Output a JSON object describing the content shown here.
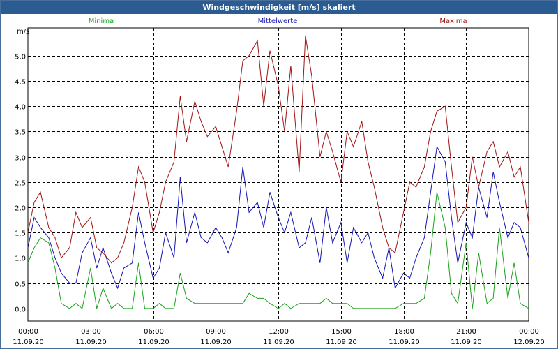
{
  "window": {
    "title": "Windgeschwindigkeit [m/s] skaliert"
  },
  "chart_data": {
    "type": "line",
    "title": "Windgeschwindigkeit [m/s] skaliert",
    "ylabel": "m/s",
    "ylim": [
      -0.25,
      5.55
    ],
    "yticks": [
      0.0,
      0.5,
      1.0,
      1.5,
      2.0,
      2.5,
      3.0,
      3.5,
      4.0,
      4.5,
      5.0
    ],
    "ytick_labels": [
      "0,0",
      "0,5",
      "1,0",
      "1,5",
      "2,0",
      "2,5",
      "3,0",
      "3,5",
      "4,0",
      "4,5",
      "5,0"
    ],
    "xlim": [
      0,
      24
    ],
    "xticks": [
      0,
      3,
      6,
      9,
      12,
      15,
      18,
      21,
      24
    ],
    "xtick_labels": [
      {
        "time": "00:00",
        "date": "11.09.20"
      },
      {
        "time": "03:00",
        "date": "11.09.20"
      },
      {
        "time": "06:00",
        "date": "11.09.20"
      },
      {
        "time": "09:00",
        "date": "11.09.20"
      },
      {
        "time": "12:00",
        "date": "11.09.20"
      },
      {
        "time": "15:00",
        "date": "11.09.20"
      },
      {
        "time": "18:00",
        "date": "11.09.20"
      },
      {
        "time": "21:00",
        "date": "11.09.20"
      },
      {
        "time": "00:00",
        "date": "12.09.20"
      }
    ],
    "grid": true,
    "legend_position": "top",
    "series": [
      {
        "name": "Minima",
        "color": "#1aa11a",
        "x": [
          0.0,
          0.3,
          0.6,
          1.0,
          1.3,
          1.6,
          2.0,
          2.3,
          2.6,
          3.0,
          3.3,
          3.6,
          4.0,
          4.3,
          4.6,
          5.0,
          5.3,
          5.6,
          6.0,
          6.3,
          6.6,
          7.0,
          7.3,
          7.6,
          8.0,
          8.3,
          8.6,
          9.0,
          9.3,
          9.6,
          10.0,
          10.3,
          10.6,
          11.0,
          11.3,
          11.6,
          12.0,
          12.3,
          12.6,
          13.0,
          13.3,
          13.6,
          14.0,
          14.3,
          14.6,
          15.0,
          15.3,
          15.6,
          16.0,
          16.3,
          16.6,
          17.0,
          17.3,
          17.6,
          18.0,
          18.3,
          18.6,
          19.0,
          19.3,
          19.6,
          20.0,
          20.3,
          20.6,
          21.0,
          21.3,
          21.6,
          22.0,
          22.3,
          22.6,
          23.0,
          23.3,
          23.6,
          24.0
        ],
        "y": [
          0.9,
          1.2,
          1.4,
          1.3,
          0.8,
          0.1,
          0.0,
          0.1,
          0.0,
          0.8,
          0.0,
          0.4,
          0.0,
          0.1,
          0.0,
          0.0,
          0.9,
          0.0,
          0.0,
          0.1,
          0.0,
          0.0,
          0.7,
          0.2,
          0.1,
          0.1,
          0.1,
          0.1,
          0.1,
          0.1,
          0.1,
          0.1,
          0.3,
          0.2,
          0.2,
          0.1,
          0.0,
          0.1,
          0.0,
          0.1,
          0.1,
          0.1,
          0.1,
          0.2,
          0.1,
          0.1,
          0.1,
          0.0,
          0.0,
          0.0,
          0.0,
          0.0,
          0.0,
          0.0,
          0.1,
          0.1,
          0.1,
          0.2,
          1.1,
          2.3,
          1.6,
          0.3,
          0.1,
          1.3,
          0.0,
          1.1,
          0.1,
          0.2,
          1.6,
          0.2,
          0.9,
          0.1,
          0.0
        ]
      },
      {
        "name": "Mittelwerte",
        "color": "#1414b4",
        "x": [
          0.0,
          0.3,
          0.6,
          1.0,
          1.3,
          1.6,
          2.0,
          2.3,
          2.6,
          3.0,
          3.3,
          3.6,
          4.0,
          4.3,
          4.6,
          5.0,
          5.3,
          5.6,
          6.0,
          6.3,
          6.6,
          7.0,
          7.3,
          7.6,
          8.0,
          8.3,
          8.6,
          9.0,
          9.3,
          9.6,
          10.0,
          10.3,
          10.6,
          11.0,
          11.3,
          11.6,
          12.0,
          12.3,
          12.6,
          13.0,
          13.3,
          13.6,
          14.0,
          14.3,
          14.6,
          15.0,
          15.3,
          15.6,
          16.0,
          16.3,
          16.6,
          17.0,
          17.3,
          17.6,
          18.0,
          18.3,
          18.6,
          19.0,
          19.3,
          19.6,
          20.0,
          20.3,
          20.6,
          21.0,
          21.3,
          21.6,
          22.0,
          22.3,
          22.6,
          23.0,
          23.3,
          23.6,
          24.0
        ],
        "y": [
          1.2,
          1.8,
          1.6,
          1.4,
          1.0,
          0.7,
          0.5,
          0.5,
          1.1,
          1.4,
          0.8,
          1.2,
          0.7,
          0.4,
          0.8,
          0.9,
          1.9,
          1.3,
          0.6,
          0.8,
          1.5,
          1.0,
          2.6,
          1.3,
          1.9,
          1.4,
          1.3,
          1.6,
          1.4,
          1.1,
          1.6,
          2.8,
          1.9,
          2.1,
          1.6,
          2.3,
          1.8,
          1.5,
          1.9,
          1.2,
          1.3,
          1.8,
          0.9,
          2.0,
          1.3,
          1.7,
          0.9,
          1.6,
          1.3,
          1.5,
          1.0,
          0.6,
          1.2,
          0.4,
          0.7,
          0.6,
          1.0,
          1.4,
          2.3,
          3.2,
          2.9,
          1.8,
          0.9,
          1.7,
          1.4,
          2.4,
          1.8,
          2.7,
          2.1,
          1.4,
          1.7,
          1.6,
          1.0
        ]
      },
      {
        "name": "Maxima",
        "color": "#a01414",
        "x": [
          0.0,
          0.3,
          0.6,
          1.0,
          1.3,
          1.6,
          2.0,
          2.3,
          2.6,
          3.0,
          3.3,
          3.6,
          4.0,
          4.3,
          4.6,
          5.0,
          5.3,
          5.6,
          6.0,
          6.3,
          6.6,
          7.0,
          7.3,
          7.6,
          8.0,
          8.3,
          8.6,
          9.0,
          9.3,
          9.6,
          10.0,
          10.3,
          10.6,
          11.0,
          11.3,
          11.6,
          12.0,
          12.3,
          12.6,
          13.0,
          13.3,
          13.6,
          14.0,
          14.3,
          14.6,
          15.0,
          15.3,
          15.6,
          16.0,
          16.3,
          16.6,
          17.0,
          17.3,
          17.6,
          18.0,
          18.3,
          18.6,
          19.0,
          19.3,
          19.6,
          20.0,
          20.3,
          20.6,
          21.0,
          21.3,
          21.6,
          22.0,
          22.3,
          22.6,
          23.0,
          23.3,
          23.6,
          24.0
        ],
        "y": [
          1.5,
          2.1,
          2.3,
          1.6,
          1.4,
          1.0,
          1.2,
          1.9,
          1.6,
          1.8,
          1.2,
          1.1,
          0.9,
          1.0,
          1.3,
          2.0,
          2.8,
          2.5,
          1.5,
          1.9,
          2.5,
          2.9,
          4.2,
          3.3,
          4.1,
          3.7,
          3.4,
          3.6,
          3.2,
          2.8,
          3.9,
          4.9,
          5.0,
          5.3,
          4.0,
          5.1,
          4.4,
          3.5,
          4.8,
          2.7,
          5.4,
          4.6,
          3.0,
          3.5,
          3.1,
          2.5,
          3.5,
          3.2,
          3.7,
          2.9,
          2.4,
          1.6,
          1.2,
          1.1,
          1.9,
          2.5,
          2.4,
          2.8,
          3.5,
          3.9,
          4.0,
          2.8,
          1.7,
          2.0,
          3.0,
          2.4,
          3.1,
          3.3,
          2.8,
          3.1,
          2.6,
          2.8,
          1.7
        ]
      }
    ]
  }
}
